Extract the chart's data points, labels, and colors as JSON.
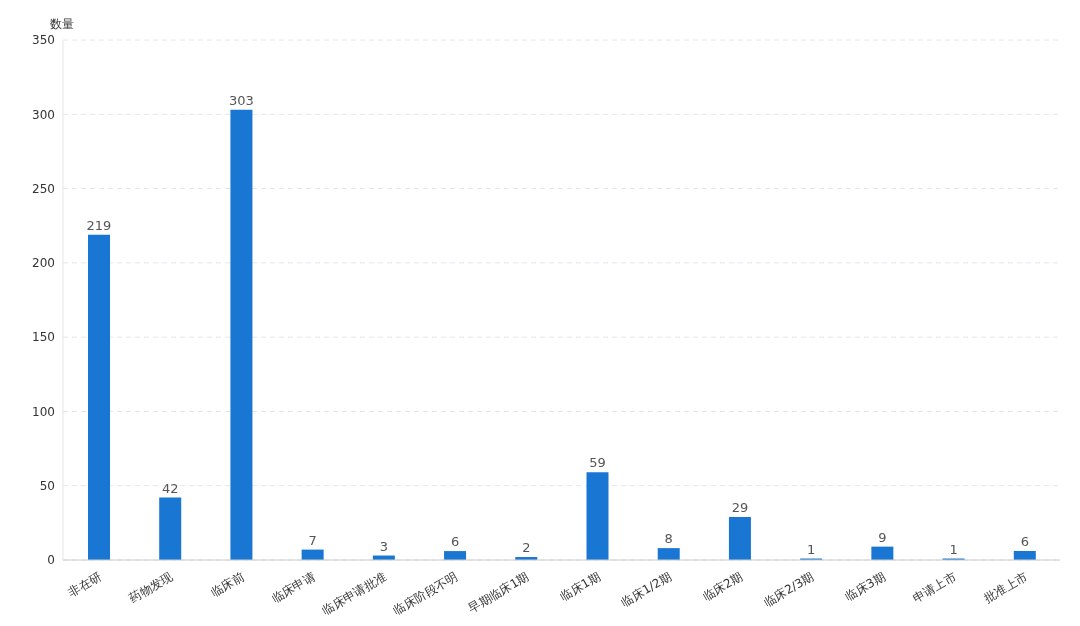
{
  "chart_data": {
    "type": "bar",
    "ylabel": "数量",
    "categories": [
      "非在研",
      "药物发现",
      "临床前",
      "临床申请",
      "临床申请批准",
      "临床阶段不明",
      "早期临床1期",
      "临床1期",
      "临床1/2期",
      "临床2期",
      "临床2/3期",
      "临床3期",
      "申请上市",
      "批准上市"
    ],
    "values": [
      219,
      42,
      303,
      7,
      3,
      6,
      2,
      59,
      8,
      29,
      1,
      9,
      1,
      6
    ],
    "color": "#1976d2",
    "ylim": [
      0,
      350
    ],
    "yticks": [
      0,
      50,
      100,
      150,
      200,
      250,
      300,
      350
    ],
    "grid": "y",
    "data_labels": true
  }
}
